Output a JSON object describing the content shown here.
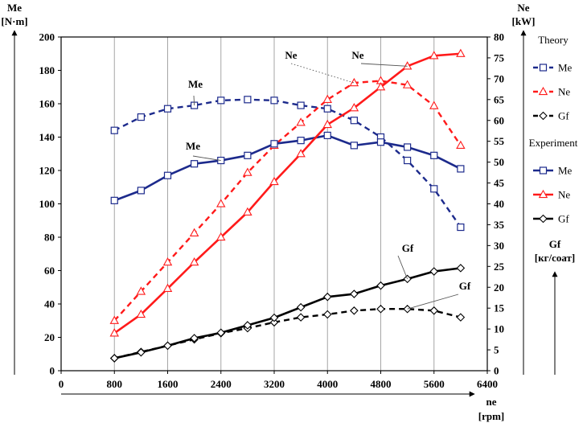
{
  "chart_data": {
    "type": "line",
    "xlabel": [
      "ne",
      "[rpm]"
    ],
    "ylabel_left": [
      "Me",
      "[N·m]"
    ],
    "ylabel_right": [
      "Ne",
      "[kW]"
    ],
    "ylabel_right_gf": [
      "Gf",
      "[кг/соат]"
    ],
    "xlim": [
      0,
      6400
    ],
    "ylim_left": [
      0,
      200
    ],
    "ylim_right": [
      0,
      80
    ],
    "x_ticks": [
      0,
      800,
      1600,
      2400,
      3200,
      4000,
      4800,
      5600,
      6400
    ],
    "y_left_ticks": [
      0,
      20,
      40,
      60,
      80,
      100,
      120,
      140,
      160,
      180,
      200
    ],
    "y_right_ticks": [
      0,
      5,
      10,
      15,
      20,
      25,
      30,
      35,
      40,
      45,
      50,
      55,
      60,
      65,
      70,
      75,
      80
    ],
    "grid": "vertical",
    "legend": {
      "position": "right",
      "groups": [
        {
          "title": "Theory",
          "entries": [
            "Me",
            "Ne",
            "Gf"
          ]
        },
        {
          "title": "Experiment",
          "entries": [
            "Me",
            "Ne",
            "Gf"
          ]
        }
      ]
    },
    "annotations": [
      {
        "text": "Me",
        "target": "theory_me"
      },
      {
        "text": "Me",
        "target": "experiment_me"
      },
      {
        "text": "Ne",
        "target": "theory_ne"
      },
      {
        "text": "Ne",
        "target": "experiment_ne"
      },
      {
        "text": "Gf",
        "target": "experiment_gf"
      },
      {
        "text": "Gf",
        "target": "theory_gf"
      }
    ],
    "series": [
      {
        "id": "theory_me",
        "name": "Me",
        "group": "Theory",
        "axis": "left",
        "color": "#1c2a8c",
        "dash": true,
        "marker": "square",
        "x": [
          800,
          1200,
          1600,
          2000,
          2400,
          2800,
          3200,
          3600,
          4000,
          4400,
          4800,
          5200,
          5600,
          6000
        ],
        "y": [
          144,
          152,
          157,
          159,
          162,
          162.5,
          162,
          159,
          157,
          150,
          140,
          126,
          109,
          86
        ]
      },
      {
        "id": "theory_ne",
        "name": "Ne",
        "group": "Theory",
        "axis": "right",
        "color": "#ff1a1a",
        "dash": true,
        "marker": "triangle",
        "x": [
          800,
          1200,
          1600,
          2000,
          2400,
          2800,
          3200,
          3600,
          4000,
          4400,
          4800,
          5200,
          5600,
          6000
        ],
        "y": [
          12,
          19,
          26,
          33,
          40,
          47.5,
          54,
          59.5,
          65,
          69,
          69.5,
          68.5,
          63.5,
          54
        ]
      },
      {
        "id": "theory_gf",
        "name": "Gf",
        "group": "Theory",
        "axis": "right",
        "color": "#000000",
        "dash": true,
        "marker": "diamond",
        "x": [
          800,
          1200,
          1600,
          2000,
          2400,
          2800,
          3200,
          3600,
          4000,
          4400,
          4800,
          5200,
          5600,
          6000
        ],
        "y": [
          3,
          4.5,
          6,
          7.5,
          9,
          10.2,
          11.6,
          12.8,
          13.5,
          14.4,
          14.8,
          14.8,
          14.4,
          12.8
        ]
      },
      {
        "id": "experiment_me",
        "name": "Me",
        "group": "Experiment",
        "axis": "left",
        "color": "#1c2a8c",
        "dash": false,
        "marker": "square",
        "x": [
          800,
          1200,
          1600,
          2000,
          2400,
          2800,
          3200,
          3600,
          4000,
          4400,
          4800,
          5200,
          5600,
          6000
        ],
        "y": [
          102,
          108,
          117,
          124,
          126,
          129,
          136,
          138,
          141,
          135,
          137,
          134,
          129,
          121
        ]
      },
      {
        "id": "experiment_ne",
        "name": "Ne",
        "group": "Experiment",
        "axis": "right",
        "color": "#ff1a1a",
        "dash": false,
        "marker": "triangle",
        "x": [
          800,
          1200,
          1600,
          2000,
          2400,
          2800,
          3200,
          3600,
          4000,
          4400,
          4800,
          5200,
          5600,
          6000
        ],
        "y": [
          9,
          13.5,
          19.7,
          26,
          32,
          38,
          45.3,
          52,
          59,
          63,
          68,
          73,
          75.5,
          76
        ]
      },
      {
        "id": "experiment_gf",
        "name": "Gf",
        "group": "Experiment",
        "axis": "right",
        "color": "#000000",
        "dash": false,
        "marker": "diamond",
        "x": [
          800,
          1200,
          1600,
          2000,
          2400,
          2800,
          3200,
          3600,
          4000,
          4400,
          4800,
          5200,
          5600,
          6000
        ],
        "y": [
          3,
          4.4,
          6,
          7.8,
          9.1,
          10.9,
          12.7,
          15.2,
          17.7,
          18.4,
          20.4,
          22,
          23.8,
          24.6
        ]
      }
    ]
  }
}
